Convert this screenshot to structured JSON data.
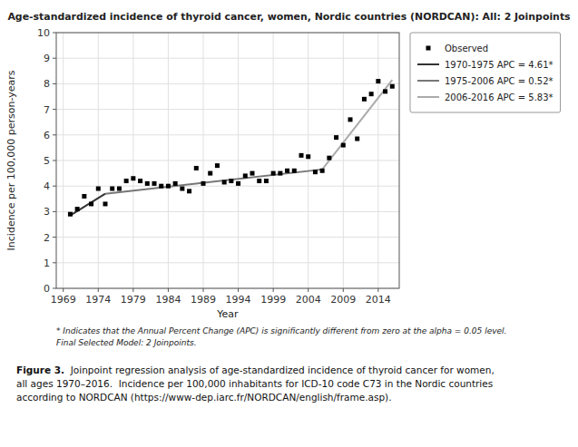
{
  "chart_data": {
    "type": "line",
    "title": "Age-standardized incidence of thyroid cancer, women, Nordic countries (NORDCAN): All: 2 Joinpoints",
    "x_label": "Year",
    "y_label": "Incidence per 100,000 person-years",
    "xlim": [
      1968,
      2017
    ],
    "ylim": [
      0,
      10
    ],
    "xticks": [
      1969,
      1974,
      1979,
      1984,
      1989,
      1994,
      1999,
      2004,
      2009,
      2014
    ],
    "yticks": [
      0,
      1,
      2,
      3,
      4,
      5,
      6,
      7,
      8,
      9,
      10
    ],
    "grid": true,
    "legend": "right",
    "series": [
      {
        "name": "Observed",
        "type": "scatter",
        "marker": "square",
        "color": "#000000",
        "x": [
          1970,
          1971,
          1972,
          1973,
          1974,
          1975,
          1976,
          1977,
          1978,
          1979,
          1980,
          1981,
          1982,
          1983,
          1984,
          1985,
          1986,
          1987,
          1988,
          1989,
          1990,
          1991,
          1992,
          1993,
          1994,
          1995,
          1996,
          1997,
          1998,
          1999,
          2000,
          2001,
          2002,
          2003,
          2004,
          2005,
          2006,
          2007,
          2008,
          2009,
          2010,
          2011,
          2012,
          2013,
          2014,
          2015,
          2016
        ],
        "values": [
          2.9,
          3.1,
          3.6,
          3.3,
          3.9,
          3.3,
          3.9,
          3.9,
          4.2,
          4.3,
          4.2,
          4.1,
          4.1,
          4.0,
          4.0,
          4.1,
          3.9,
          3.8,
          4.7,
          4.1,
          4.5,
          4.8,
          4.15,
          4.2,
          4.1,
          4.4,
          4.5,
          4.2,
          4.2,
          4.5,
          4.5,
          4.6,
          4.6,
          5.2,
          5.15,
          4.55,
          4.6,
          5.1,
          5.9,
          5.6,
          6.6,
          5.85,
          7.4,
          7.6,
          8.1,
          7.7,
          7.9
        ]
      },
      {
        "name": "1970-1975 APC = 4.61*",
        "type": "line",
        "line_style": "solid",
        "color": "#333333",
        "x": [
          1970,
          1975
        ],
        "values": [
          2.85,
          3.7
        ]
      },
      {
        "name": "1975-2006 APC = 0.52*",
        "type": "line",
        "line_style": "solid",
        "color": "#777777",
        "x": [
          1975,
          2006
        ],
        "values": [
          3.7,
          4.65
        ]
      },
      {
        "name": "2006-2016 APC = 5.83*",
        "type": "line",
        "line_style": "solid",
        "color": "#aaaaaa",
        "x": [
          2006,
          2016
        ],
        "values": [
          4.65,
          8.15
        ]
      }
    ],
    "notes": [
      "* Indicates that the Annual Percent Change (APC) is significantly different from zero at the alpha = 0.05 level.",
      "Final Selected Model: 2 Joinpoints."
    ],
    "caption_label": "Figure 3.",
    "caption": "  Joinpoint regression analysis of age-standardized incidence of thyroid cancer for women,\nall ages 1970–2016.  Incidence per 100,000 inhabitants for ICD-10 code C73 in the Nordic countries\naccording to NORDCAN (https://www-dep.iarc.fr/NORDCAN/english/frame.asp)."
  }
}
